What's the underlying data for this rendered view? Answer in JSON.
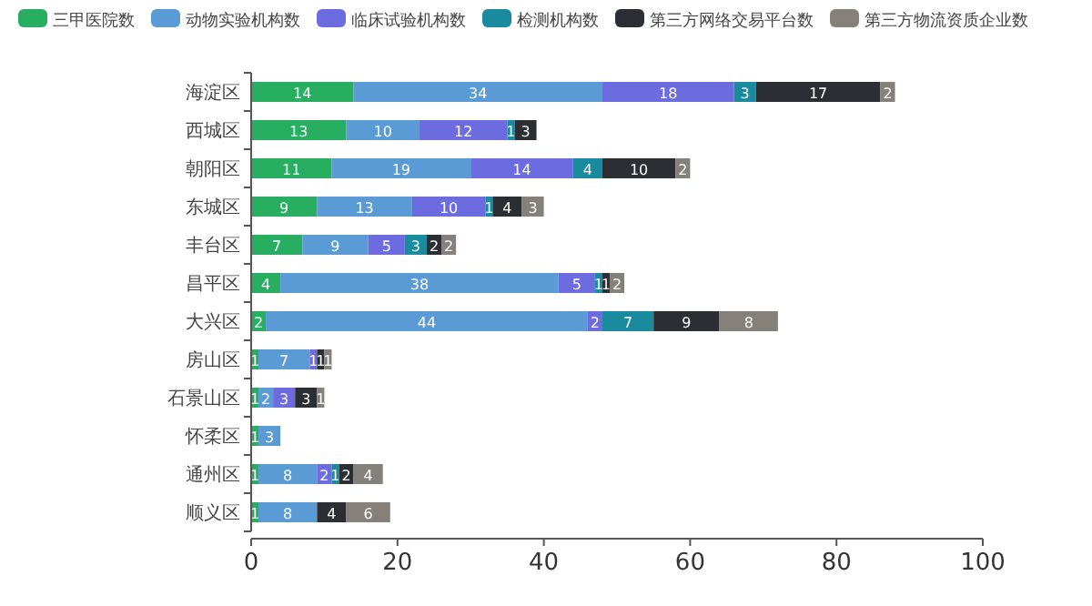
{
  "chart_data": {
    "type": "bar",
    "orientation": "horizontal",
    "stacked": true,
    "data_labels": true,
    "legend": "top",
    "grid": false,
    "categories": [
      "海淀区",
      "西城区",
      "朝阳区",
      "东城区",
      "丰台区",
      "昌平区",
      "大兴区",
      "房山区",
      "石景山区",
      "怀柔区",
      "通州区",
      "顺义区"
    ],
    "xlim": [
      0,
      100
    ],
    "xticks": [
      0,
      20,
      40,
      60,
      80,
      100
    ],
    "series": [
      {
        "name": "三甲医院数",
        "color": "#27ae60",
        "values": [
          14,
          13,
          11,
          9,
          7,
          4,
          2,
          1,
          1,
          1,
          1,
          1
        ]
      },
      {
        "name": "动物实验机构数",
        "color": "#5b9bd5",
        "values": [
          34,
          10,
          19,
          13,
          9,
          38,
          44,
          7,
          2,
          3,
          8,
          8
        ]
      },
      {
        "name": "临床试验机构数",
        "color": "#6c6ce0",
        "values": [
          18,
          12,
          14,
          10,
          5,
          5,
          2,
          1,
          3,
          null,
          2,
          null
        ]
      },
      {
        "name": "检测机构数",
        "color": "#1a8a9e",
        "values": [
          3,
          1,
          4,
          1,
          3,
          1,
          7,
          null,
          null,
          null,
          1,
          null
        ]
      },
      {
        "name": "第三方网络交易平台数",
        "color": "#2b2f33",
        "values": [
          17,
          3,
          10,
          4,
          2,
          1,
          9,
          1,
          3,
          null,
          2,
          4
        ]
      },
      {
        "name": "第三方物流资质企业数",
        "color": "#85817a",
        "values": [
          2,
          null,
          2,
          3,
          2,
          2,
          8,
          1,
          1,
          null,
          4,
          6
        ]
      }
    ]
  }
}
